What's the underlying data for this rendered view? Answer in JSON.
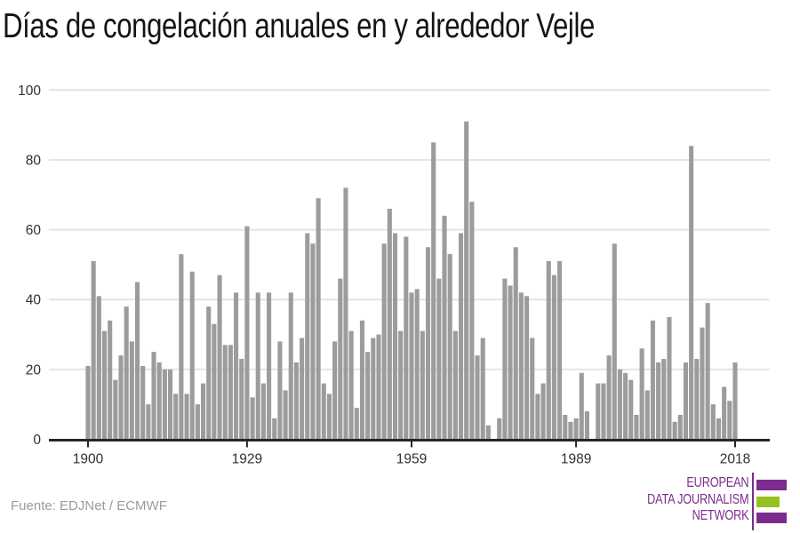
{
  "title": "Días de congelación anuales en y alrededor Vejle",
  "source": "Fuente: EDJNet / ECMWF",
  "logo": {
    "lines": [
      "EUROPEAN",
      "DATA JOURNALISM",
      "NETWORK"
    ],
    "purple": "#7b2c8f",
    "green": "#95c11f"
  },
  "chart_data": {
    "type": "bar",
    "title": "Días de congelación anuales en y alrededor Vejle",
    "xlabel": "",
    "ylabel": "",
    "ylim": [
      0,
      100
    ],
    "yticks": [
      0,
      20,
      40,
      60,
      80,
      100
    ],
    "xticks": [
      1900,
      1929,
      1959,
      1989,
      2018
    ],
    "grid": "horizontal",
    "legend": "none",
    "bar_color": "#9c9c9c",
    "grid_color": "#e4e4e4",
    "axis_color": "#262626",
    "label_color": "#303030",
    "x": [
      1900,
      1901,
      1902,
      1903,
      1904,
      1905,
      1906,
      1907,
      1908,
      1909,
      1910,
      1911,
      1912,
      1913,
      1914,
      1915,
      1916,
      1917,
      1918,
      1919,
      1920,
      1921,
      1922,
      1923,
      1924,
      1925,
      1926,
      1927,
      1928,
      1929,
      1930,
      1931,
      1932,
      1933,
      1934,
      1935,
      1936,
      1937,
      1938,
      1939,
      1940,
      1941,
      1942,
      1943,
      1944,
      1945,
      1946,
      1947,
      1948,
      1949,
      1950,
      1951,
      1952,
      1953,
      1954,
      1955,
      1956,
      1957,
      1958,
      1959,
      1960,
      1961,
      1962,
      1963,
      1964,
      1965,
      1966,
      1967,
      1968,
      1969,
      1970,
      1971,
      1972,
      1973,
      1974,
      1975,
      1976,
      1977,
      1978,
      1979,
      1980,
      1981,
      1982,
      1983,
      1984,
      1985,
      1986,
      1987,
      1988,
      1989,
      1990,
      1991,
      1992,
      1993,
      1994,
      1995,
      1996,
      1997,
      1998,
      1999,
      2000,
      2001,
      2002,
      2003,
      2004,
      2005,
      2006,
      2007,
      2008,
      2009,
      2010,
      2011,
      2012,
      2013,
      2014,
      2015,
      2016,
      2017,
      2018
    ],
    "values": [
      21,
      51,
      41,
      31,
      34,
      17,
      24,
      38,
      28,
      45,
      21,
      10,
      25,
      22,
      20,
      20,
      13,
      53,
      13,
      48,
      10,
      16,
      38,
      33,
      47,
      27,
      27,
      42,
      23,
      61,
      12,
      42,
      16,
      42,
      6,
      28,
      14,
      42,
      22,
      29,
      59,
      56,
      69,
      16,
      13,
      28,
      46,
      72,
      31,
      9,
      34,
      25,
      29,
      30,
      56,
      66,
      59,
      31,
      58,
      42,
      43,
      31,
      55,
      85,
      46,
      64,
      53,
      31,
      59,
      91,
      68,
      24,
      29,
      4,
      0,
      6,
      46,
      44,
      55,
      42,
      41,
      29,
      13,
      16,
      51,
      47,
      51,
      7,
      5,
      6,
      19,
      8,
      0,
      16,
      16,
      24,
      56,
      20,
      19,
      17,
      7,
      26,
      14,
      34,
      22,
      23,
      35,
      5,
      7,
      22,
      84,
      23,
      32,
      39,
      10,
      6,
      15,
      11,
      22
    ]
  }
}
